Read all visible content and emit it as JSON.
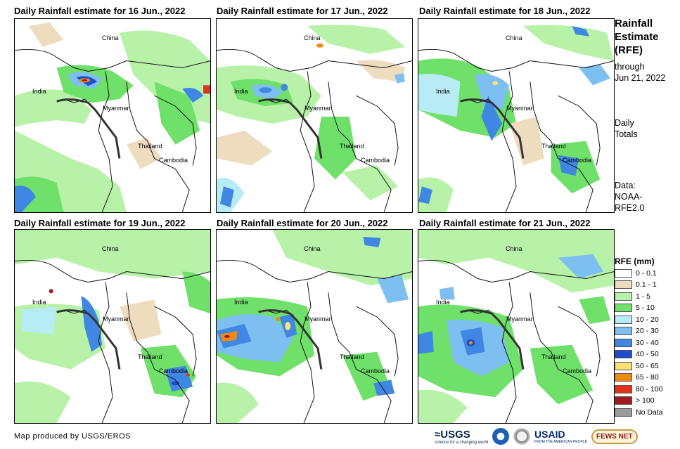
{
  "panels": [
    {
      "title": "Daily Rainfall estimate for 16 Jun., 2022"
    },
    {
      "title": "Daily Rainfall estimate for 17 Jun., 2022"
    },
    {
      "title": "Daily Rainfall estimate for 18 Jun., 2022"
    },
    {
      "title": "Daily Rainfall estimate for 19 Jun., 2022"
    },
    {
      "title": "Daily Rainfall estimate for 20 Jun., 2022"
    },
    {
      "title": "Daily Rainfall estimate for 21 Jun., 2022"
    }
  ],
  "map_labels": {
    "china": "China",
    "india": "India",
    "myanmar": "Myanmar",
    "thailand": "Thailand",
    "cambodia": "Cambodia"
  },
  "sidebar": {
    "title_line1": "Rainfall",
    "title_line2": "Estimate",
    "title_line3": "(RFE)",
    "through_line1": "through",
    "through_line2": "Jun 21, 2022",
    "totals_line1": "Daily",
    "totals_line2": "Totals",
    "data_line1": "Data:",
    "data_line2": "NOAA-",
    "data_line3": "RFE2.0"
  },
  "legend": {
    "title": "RFE (mm)",
    "items": [
      {
        "label": "0 - 0.1",
        "color": "#ffffff"
      },
      {
        "label": "0.1 - 1",
        "color": "#eedcbf"
      },
      {
        "label": "1 - 5",
        "color": "#b7f2a8"
      },
      {
        "label": "5 - 10",
        "color": "#6fe06a"
      },
      {
        "label": "10 - 20",
        "color": "#b8ecf5"
      },
      {
        "label": "20 - 30",
        "color": "#7dbff0"
      },
      {
        "label": "30 - 40",
        "color": "#3f87e3"
      },
      {
        "label": "40 - 50",
        "color": "#1c4fc9"
      },
      {
        "label": "50 - 65",
        "color": "#f7e07a"
      },
      {
        "label": "65 - 80",
        "color": "#f08a14"
      },
      {
        "label": "80 - 100",
        "color": "#e3321a"
      },
      {
        "label": "> 100",
        "color": "#a31a1a"
      },
      {
        "label": "No Data",
        "color": "#9a9a9a"
      }
    ]
  },
  "footer": {
    "credit": "Map produced by USGS/EROS",
    "logo_usgs": "≈USGS",
    "logo_usgs_tag": "science for a changing world",
    "logo_usaid": "USAID",
    "logo_usaid_tag": "FROM THE AMERICAN PEOPLE",
    "logo_fews": "FEWS NET"
  }
}
